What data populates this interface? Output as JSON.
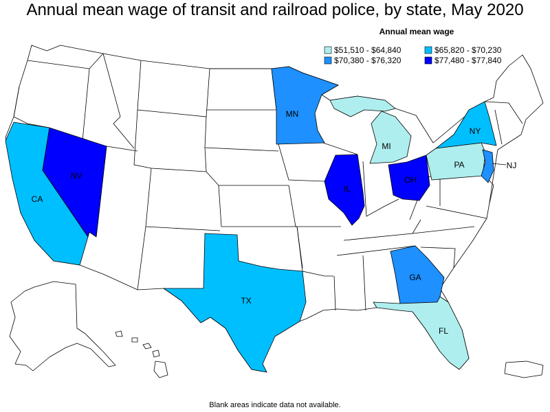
{
  "title": "Annual mean wage of transit and railroad police, by state, May 2020",
  "legend": {
    "title": "Annual mean wage",
    "items": [
      {
        "label": "$51,510 - $64,840",
        "color": "#afeeee"
      },
      {
        "label": "$65,820 - $70,230",
        "color": "#00bfff"
      },
      {
        "label": "$70,380 - $76,320",
        "color": "#1e90ff"
      },
      {
        "label": "$77,480 - $77,840",
        "color": "#0000ff"
      }
    ]
  },
  "states": [
    {
      "abbr": "CA",
      "range": "$65,820 - $70,230",
      "color": "#00bfff"
    },
    {
      "abbr": "NV",
      "range": "$77,480 - $77,840",
      "color": "#0000ff"
    },
    {
      "abbr": "TX",
      "range": "$65,820 - $70,230",
      "color": "#00bfff"
    },
    {
      "abbr": "MN",
      "range": "$70,380 - $76,320",
      "color": "#1e90ff"
    },
    {
      "abbr": "IL",
      "range": "$77,480 - $77,840",
      "color": "#0000ff"
    },
    {
      "abbr": "MI",
      "range": "$51,510 - $64,840",
      "color": "#afeeee"
    },
    {
      "abbr": "OH",
      "range": "$77,480 - $77,840",
      "color": "#0000ff"
    },
    {
      "abbr": "PA",
      "range": "$51,510 - $64,840",
      "color": "#afeeee"
    },
    {
      "abbr": "NY",
      "range": "$65,820 - $70,230",
      "color": "#00bfff"
    },
    {
      "abbr": "NJ",
      "range": "$70,380 - $76,320",
      "color": "#1e90ff"
    },
    {
      "abbr": "GA",
      "range": "$70,380 - $76,320",
      "color": "#1e90ff"
    },
    {
      "abbr": "FL",
      "range": "$51,510 - $64,840",
      "color": "#afeeee"
    }
  ],
  "no_data_color": "#ffffff",
  "footnote": "Blank areas indicate data not available."
}
